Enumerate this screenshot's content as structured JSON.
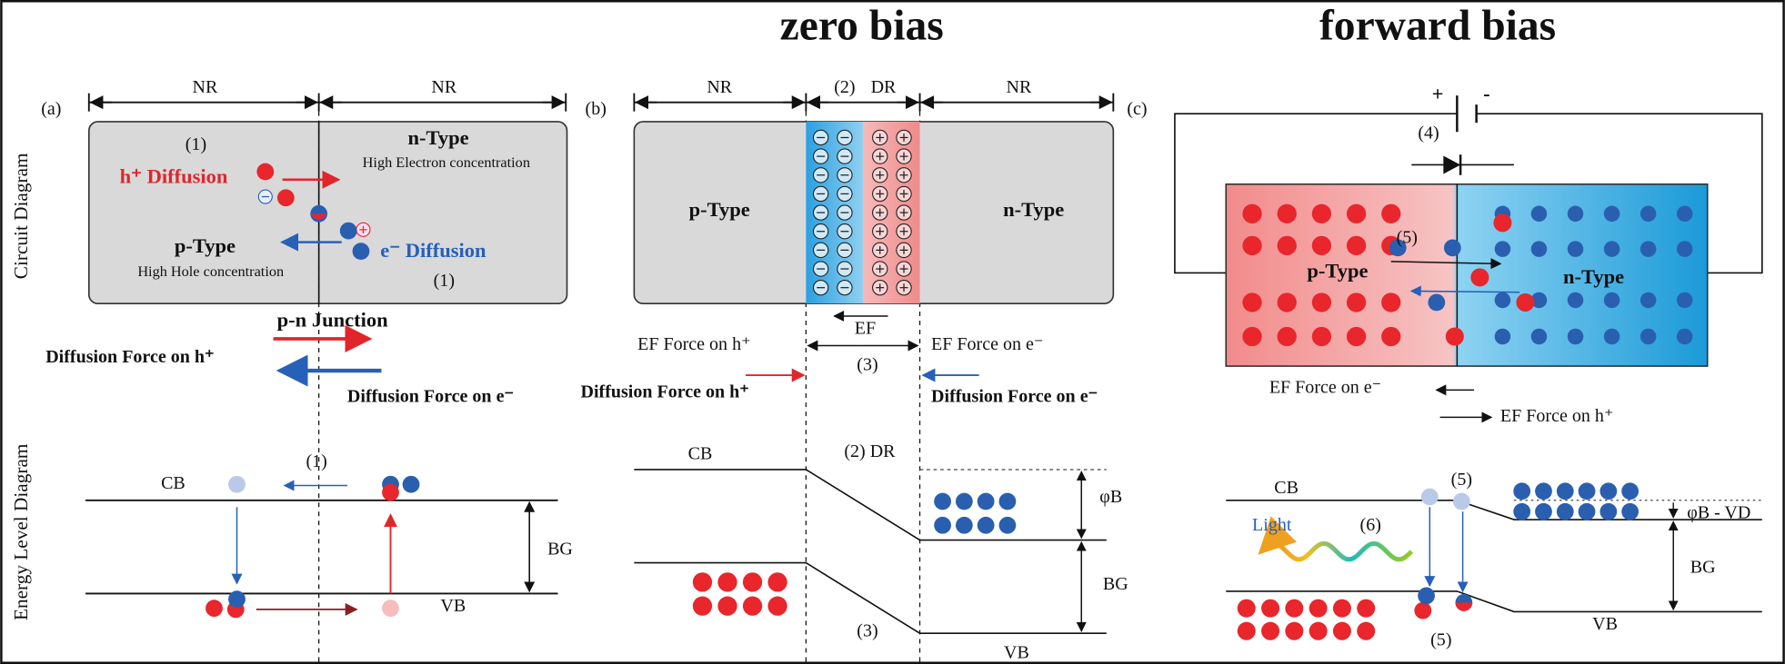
{
  "header": {
    "zero_bias": "zero bias",
    "forward_bias": "forward bias"
  },
  "side_labels": {
    "circuit": "Circuit Diagram",
    "energy": "Energy Level Diagram"
  },
  "panel_a": {
    "label": "(a)",
    "region_left": "NR",
    "region_right": "NR",
    "step_1_top": "(1)",
    "h_diffusion": "h⁺ Diffusion",
    "n_type": "n-Type",
    "n_type_note": "High Electron concentration",
    "p_type": "p-Type",
    "p_type_note": "High Hole concentration",
    "e_diffusion": "e⁻ Diffusion",
    "step_1_bottom": "(1)",
    "junction": "p-n Junction",
    "diffusion_force_h": "Diffusion Force on h⁺",
    "diffusion_force_e": "Diffusion Force on e⁻",
    "step_1_energy": "(1)",
    "cb": "CB",
    "bg": "BG",
    "vb": "VB"
  },
  "panel_b": {
    "label": "(b)",
    "region_left": "NR",
    "step_2": "(2)",
    "region_depletion": "DR",
    "region_right": "NR",
    "p_type": "p-Type",
    "n_type": "n-Type",
    "ef": "EF",
    "ef_force_h": "EF Force on h⁺",
    "ef_force_e": "EF Force on e⁻",
    "step_3_top": "(3)",
    "diffusion_force_h": "Diffusion Force on h⁺",
    "diffusion_force_e": "Diffusion Force on e⁻",
    "cb": "CB",
    "depletion_energy": "(2) DR",
    "barrier": "φB",
    "bg": "BG",
    "step_3_energy": "(3)",
    "vb": "VB"
  },
  "panel_c": {
    "label": "(c)",
    "battery_plus": "+",
    "battery_minus": "-",
    "step_4": "(4)",
    "step_5_top": "(5)",
    "p_type": "p-Type",
    "n_type": "n-Type",
    "ef_force_e": "EF Force on e⁻",
    "ef_force_h": "EF Force on h⁺",
    "cb": "CB",
    "step_5_cb": "(5)",
    "light": "Light",
    "step_6": "(6)",
    "barrier_reduced": "φB - VD",
    "bg": "BG",
    "vb": "VB",
    "step_5_vb": "(5)"
  }
}
